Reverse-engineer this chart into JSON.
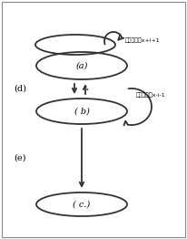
{
  "bg_color": "#ffffff",
  "border_color": "#333333",
  "lw": 1.3,
  "label_a": "(a)",
  "label_b": "( b)",
  "label_c": "( c.)",
  "label_d": "(d)",
  "label_e": "(e)",
  "text_top": "स्वयंx+i+1",
  "text_mid": "स्वयंx-i-1",
  "arrow_color": "#333333",
  "label_font_size": 7,
  "text_font_size": 4.5
}
